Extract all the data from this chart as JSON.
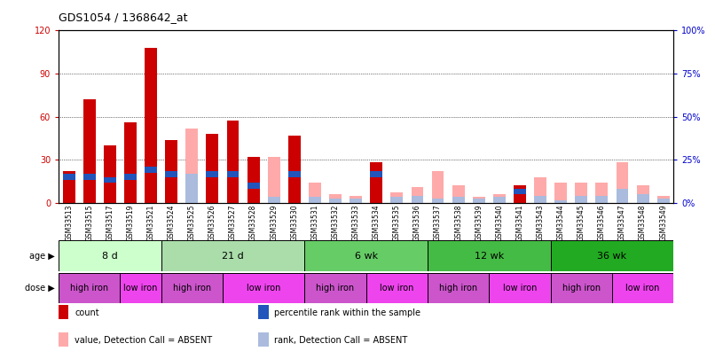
{
  "title": "GDS1054 / 1368642_at",
  "samples": [
    "GSM33513",
    "GSM33515",
    "GSM33517",
    "GSM33519",
    "GSM33521",
    "GSM33524",
    "GSM33525",
    "GSM33526",
    "GSM33527",
    "GSM33528",
    "GSM33529",
    "GSM33530",
    "GSM33531",
    "GSM33532",
    "GSM33533",
    "GSM33534",
    "GSM33535",
    "GSM33536",
    "GSM33537",
    "GSM33538",
    "GSM33539",
    "GSM33540",
    "GSM33541",
    "GSM33543",
    "GSM33544",
    "GSM33545",
    "GSM33546",
    "GSM33547",
    "GSM33548",
    "GSM33549"
  ],
  "red_bars": [
    22,
    72,
    40,
    56,
    108,
    44,
    0,
    48,
    57,
    32,
    0,
    47,
    0,
    0,
    0,
    28,
    0,
    0,
    0,
    0,
    0,
    0,
    12,
    0,
    0,
    0,
    0,
    0,
    0,
    0
  ],
  "pink_bars": [
    0,
    0,
    0,
    0,
    0,
    0,
    52,
    0,
    0,
    0,
    32,
    0,
    14,
    6,
    5,
    0,
    7,
    11,
    22,
    12,
    4,
    6,
    0,
    18,
    14,
    14,
    14,
    28,
    12,
    5
  ],
  "blue_bars": [
    20,
    20,
    18,
    20,
    25,
    22,
    0,
    22,
    22,
    14,
    0,
    22,
    0,
    0,
    0,
    22,
    0,
    0,
    0,
    0,
    0,
    0,
    10,
    0,
    0,
    0,
    0,
    0,
    0,
    0
  ],
  "lblue_bars": [
    0,
    0,
    0,
    0,
    0,
    0,
    20,
    0,
    0,
    0,
    4,
    0,
    4,
    3,
    3,
    0,
    4,
    5,
    3,
    4,
    3,
    4,
    0,
    5,
    2,
    5,
    5,
    10,
    6,
    3
  ],
  "ylim": [
    0,
    120
  ],
  "y2lim": [
    0,
    100
  ],
  "yticks": [
    0,
    30,
    60,
    90,
    120
  ],
  "ytick_labels": [
    "0",
    "30",
    "60",
    "90",
    "120"
  ],
  "y2ticks": [
    0,
    25,
    50,
    75,
    100
  ],
  "y2tick_labels": [
    "0%",
    "25%",
    "50%",
    "75%",
    "100%"
  ],
  "age_groups": [
    {
      "label": "8 d",
      "start": 0,
      "end": 5,
      "color": "#ccffcc"
    },
    {
      "label": "21 d",
      "start": 5,
      "end": 12,
      "color": "#aaddaa"
    },
    {
      "label": "6 wk",
      "start": 12,
      "end": 18,
      "color": "#66cc66"
    },
    {
      "label": "12 wk",
      "start": 18,
      "end": 24,
      "color": "#44bb44"
    },
    {
      "label": "36 wk",
      "start": 24,
      "end": 30,
      "color": "#22aa22"
    }
  ],
  "dose_groups": [
    {
      "label": "high iron",
      "start": 0,
      "end": 3,
      "color": "#cc55cc"
    },
    {
      "label": "low iron",
      "start": 3,
      "end": 5,
      "color": "#ee44ee"
    },
    {
      "label": "high iron",
      "start": 5,
      "end": 8,
      "color": "#cc55cc"
    },
    {
      "label": "low iron",
      "start": 8,
      "end": 12,
      "color": "#ee44ee"
    },
    {
      "label": "high iron",
      "start": 12,
      "end": 15,
      "color": "#cc55cc"
    },
    {
      "label": "low iron",
      "start": 15,
      "end": 18,
      "color": "#ee44ee"
    },
    {
      "label": "high iron",
      "start": 18,
      "end": 21,
      "color": "#cc55cc"
    },
    {
      "label": "low iron",
      "start": 21,
      "end": 24,
      "color": "#ee44ee"
    },
    {
      "label": "high iron",
      "start": 24,
      "end": 27,
      "color": "#cc55cc"
    },
    {
      "label": "low iron",
      "start": 27,
      "end": 30,
      "color": "#ee44ee"
    }
  ],
  "red_color": "#cc0000",
  "pink_color": "#ffaaaa",
  "blue_color": "#2255bb",
  "lblue_color": "#aabbdd",
  "bar_width": 0.6,
  "grid_color": "#000000",
  "left_ylabel_color": "#cc0000",
  "right_ylabel_color": "#0000cc"
}
